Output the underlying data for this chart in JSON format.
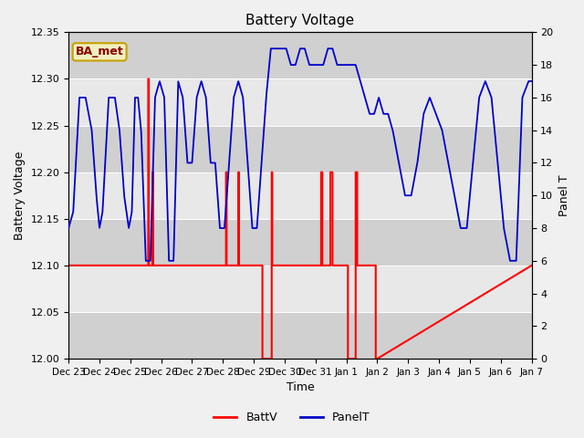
{
  "title": "Battery Voltage",
  "xlabel": "Time",
  "ylabel_left": "Battery Voltage",
  "ylabel_right": "Panel T",
  "ylim_left": [
    12.0,
    12.35
  ],
  "ylim_right": [
    0,
    20
  ],
  "annotation_label": "BA_met",
  "annotation_color": "#8b0000",
  "annotation_bg": "#f0f0c0",
  "annotation_border": "#c8a000",
  "xtick_labels": [
    "Dec 23",
    "Dec 24",
    "Dec 25",
    "Dec 26",
    "Dec 27",
    "Dec 28",
    "Dec 29",
    "Dec 30",
    "Dec 31",
    "Jan 1",
    "Jan 2",
    "Jan 3",
    "Jan 4",
    "Jan 5",
    "Jan 6",
    "Jan 7"
  ],
  "batt_color": "#ff0000",
  "panel_color": "#0000cc",
  "legend_batt": "BattV",
  "legend_panel": "PanelT",
  "n_days": 15,
  "band_colors": [
    "#d0d0d0",
    "#e8e8e8"
  ],
  "band_edges": [
    12.0,
    12.05,
    12.1,
    12.15,
    12.2,
    12.25,
    12.3,
    12.35
  ],
  "fig_bg": "#f0f0f0"
}
